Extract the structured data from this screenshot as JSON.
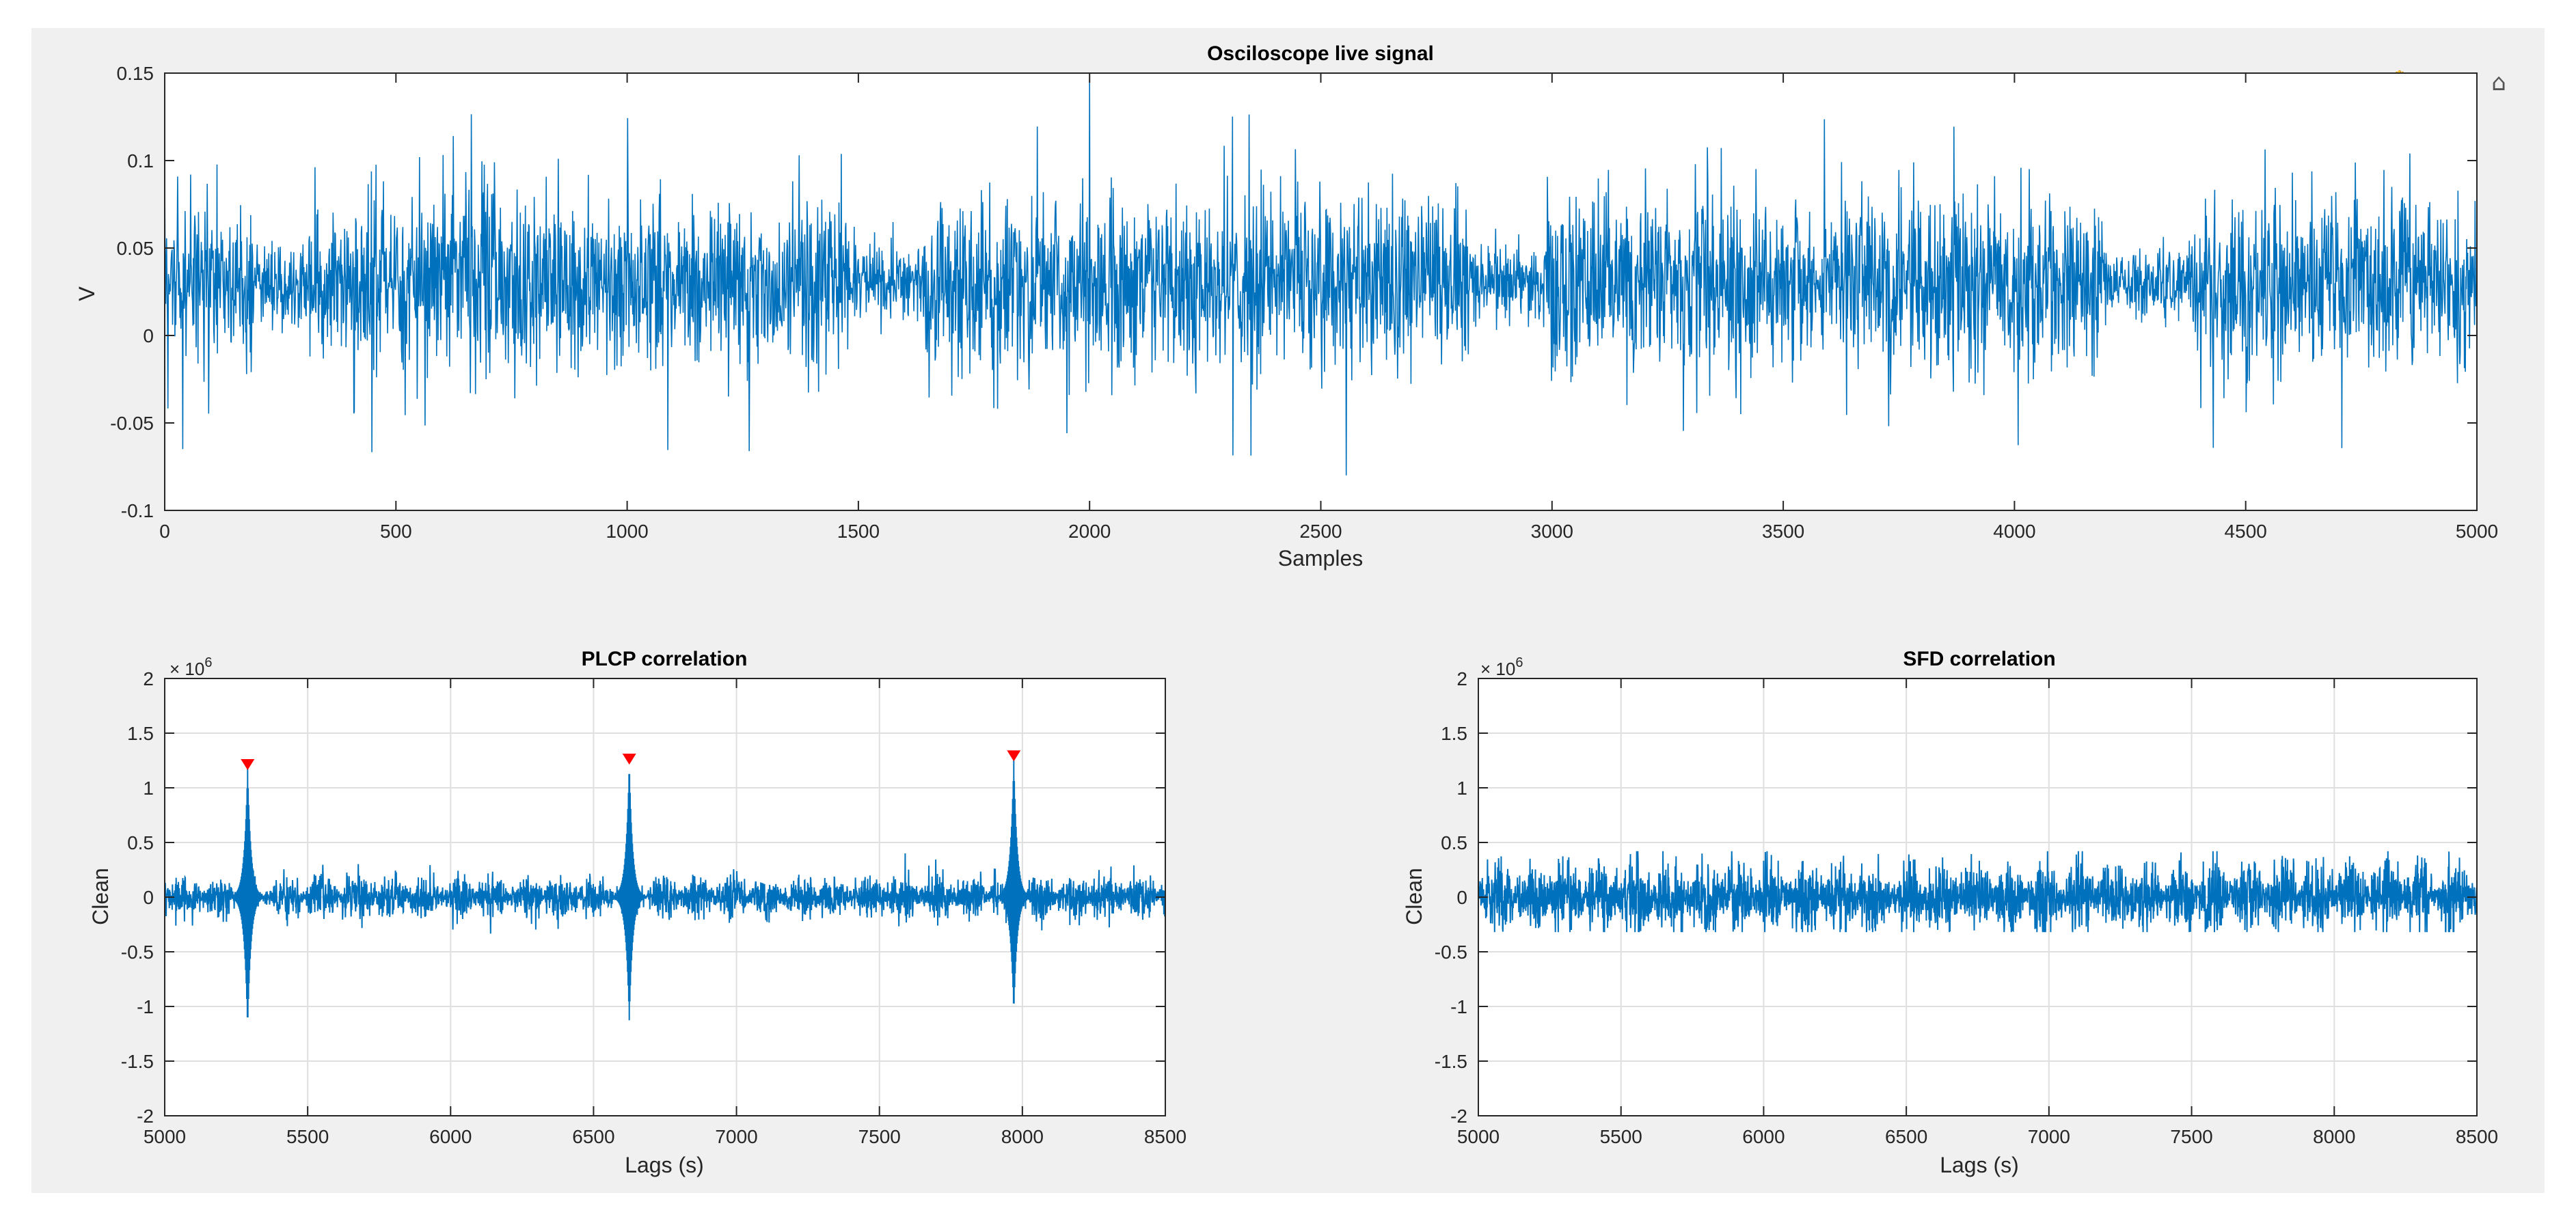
{
  "figure": {
    "background": "#f0f0f0"
  },
  "colors": {
    "signal": "#0072bd",
    "peak": "#ff0000",
    "grid": "#dfdfdf",
    "axis": "#262626"
  },
  "toolbar": {
    "icons": [
      "export-icon",
      "brush-icon",
      "data-tips-icon",
      "pan-icon",
      "zoom-in-icon",
      "zoom-out-icon",
      "home-icon"
    ],
    "glyphs": [
      "⇪",
      "✎",
      "⊟",
      "✋",
      "⊕",
      "⊖",
      "⌂"
    ]
  },
  "chart_data": [
    {
      "id": "oscilloscope",
      "type": "line",
      "title": "Osciloscope live signal",
      "xlabel": "Samples",
      "ylabel": "V",
      "xlim": [
        0,
        5000
      ],
      "ylim": [
        -0.1,
        0.15
      ],
      "xticks": [
        0,
        500,
        1000,
        1500,
        2000,
        2500,
        3000,
        3500,
        4000,
        4500,
        5000
      ],
      "yticks": [
        -0.1,
        -0.05,
        0,
        0.05,
        0.1,
        0.15
      ],
      "ytick_labels": [
        "-0.1",
        "-0.05",
        "0",
        "0.05",
        "0.1",
        "0.15"
      ],
      "grid": false,
      "signal": {
        "baseline": 0.03,
        "typical_amplitude": 0.04,
        "max": 0.147,
        "min": -0.08,
        "quiet_intervals": [
          [
            190,
            310
          ],
          [
            1480,
            1640
          ],
          [
            2820,
            2980
          ],
          [
            4190,
            4380
          ]
        ]
      }
    },
    {
      "id": "plcp",
      "type": "line",
      "title": "PLCP correlation",
      "xlabel": "Lags (s)",
      "ylabel": "Clean",
      "exponent_label": "× 10",
      "exponent_value": "6",
      "xlim": [
        5000,
        8500
      ],
      "ylim": [
        -2,
        2
      ],
      "xticks": [
        5000,
        5500,
        6000,
        6500,
        7000,
        7500,
        8000,
        8500
      ],
      "yticks": [
        -2,
        -1.5,
        -1,
        -0.5,
        0,
        0.5,
        1,
        1.5,
        2
      ],
      "ytick_labels": [
        "-2",
        "-1.5",
        "-1",
        "-0.5",
        "0",
        "0.5",
        "1",
        "1.5",
        "2"
      ],
      "grid": true,
      "signal": {
        "noise_amplitude": 0.12
      },
      "peaks": [
        {
          "x": 5290,
          "y": 1.2,
          "min": -1.22
        },
        {
          "x": 6625,
          "y": 1.25,
          "min": -1.15
        },
        {
          "x": 7970,
          "y": 1.28,
          "min": -1.08
        }
      ]
    },
    {
      "id": "sfd",
      "type": "line",
      "title": "SFD correlation",
      "xlabel": "Lags (s)",
      "ylabel": "Clean",
      "exponent_label": "× 10",
      "exponent_value": "6",
      "xlim": [
        5000,
        8500
      ],
      "ylim": [
        -2,
        2
      ],
      "xticks": [
        5000,
        5500,
        6000,
        6500,
        7000,
        7500,
        8000,
        8500
      ],
      "yticks": [
        -2,
        -1.5,
        -1,
        -0.5,
        0,
        0.5,
        1,
        1.5,
        2
      ],
      "ytick_labels": [
        "-2",
        "-1.5",
        "-1",
        "-0.5",
        "0",
        "0.5",
        "1",
        "1.5",
        "2"
      ],
      "grid": true,
      "signal": {
        "noise_amplitude": 0.2,
        "max": 0.42,
        "min": -0.32
      }
    }
  ]
}
